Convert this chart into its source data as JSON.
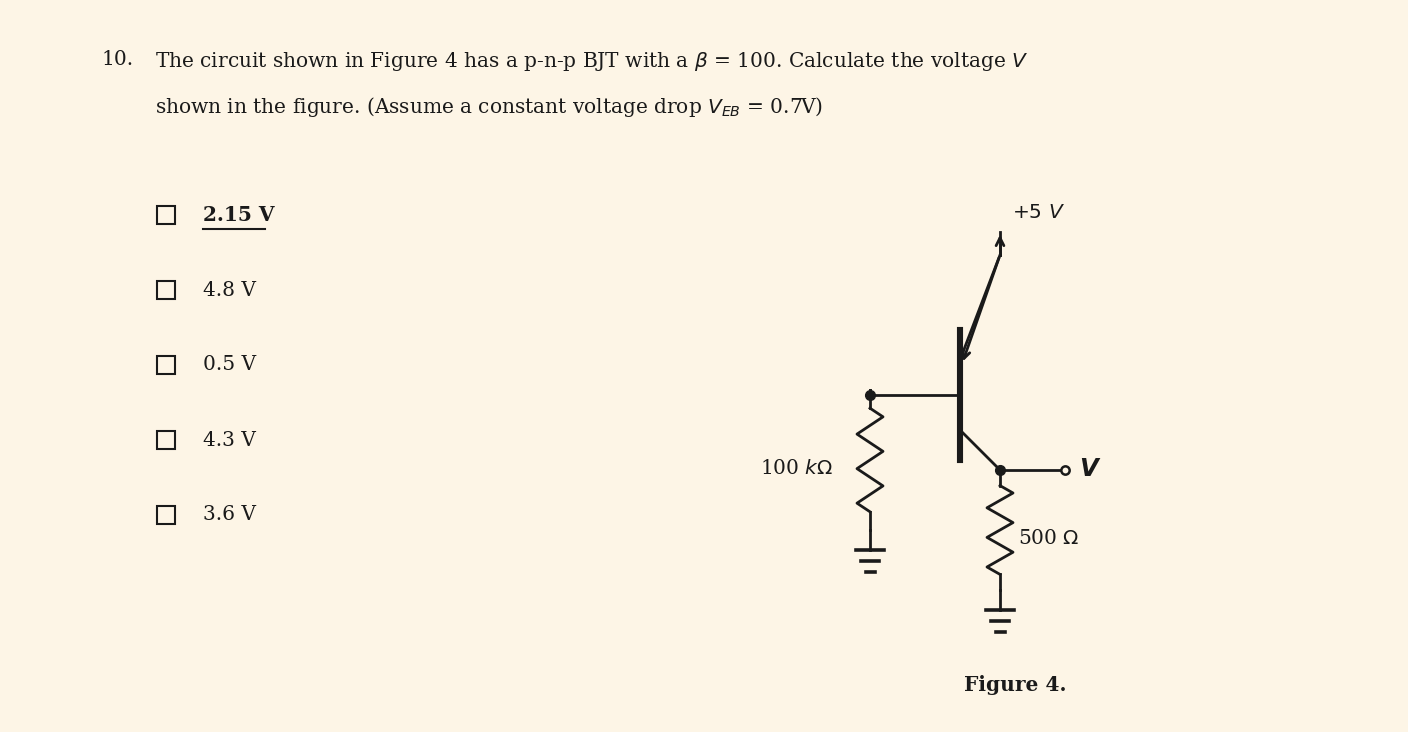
{
  "bg_color": "#fdf5e6",
  "answers": [
    {
      "text": "2.15 V",
      "bold": true,
      "underline": true
    },
    {
      "text": "4.8 V",
      "bold": false,
      "underline": false
    },
    {
      "text": "0.5 V",
      "bold": false,
      "underline": false
    },
    {
      "text": "4.3 V",
      "bold": false,
      "underline": false
    },
    {
      "text": "3.6 V",
      "bold": false,
      "underline": false
    }
  ],
  "res100k_label": "100 kΩ",
  "res500_label": "500 Ω",
  "supply_label": "+5 V",
  "output_label": "V",
  "figure_label": "Figure 4."
}
